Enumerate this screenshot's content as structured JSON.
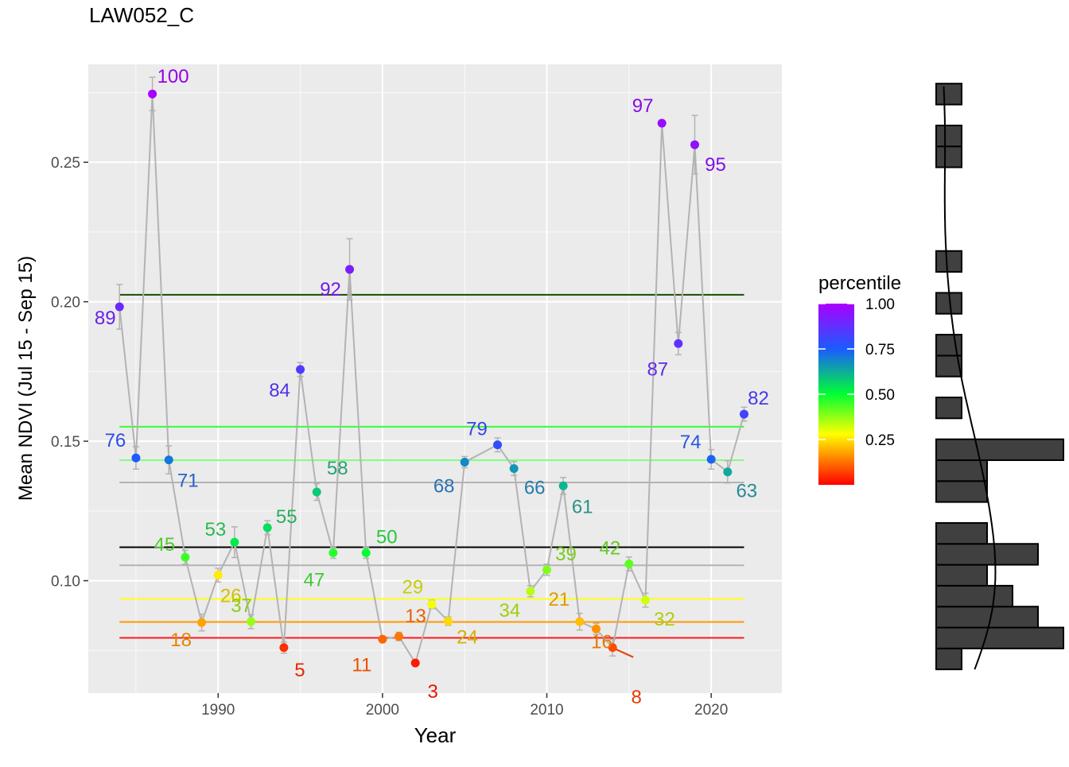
{
  "chart_data": {
    "type": "line",
    "title": "LAW052_C",
    "xlabel": "Year",
    "ylabel": "Mean NDVI (Jul 15 - Sep 15)",
    "xlim": [
      1982.1,
      2024.3
    ],
    "ylim": [
      0.0597,
      0.2851
    ],
    "x_ticks": [
      1990,
      2000,
      2010,
      2020
    ],
    "x_tick_labels": [
      "1990",
      "2000",
      "2010",
      "2020"
    ],
    "y_ticks": [
      0.1,
      0.15,
      0.2,
      0.25
    ],
    "y_tick_labels": [
      "0.10",
      "0.15",
      "0.20",
      "0.25"
    ],
    "grid": true,
    "series_color": "#b3b3b3",
    "points": [
      {
        "year": 1984,
        "ndvi": 0.1982,
        "percentile": 89,
        "err": 0.008
      },
      {
        "year": 1985,
        "ndvi": 0.144,
        "percentile": 76,
        "err": 0.004
      },
      {
        "year": 1986,
        "ndvi": 0.2745,
        "percentile": 100,
        "err": 0.006
      },
      {
        "year": 1987,
        "ndvi": 0.1433,
        "percentile": 71,
        "err": 0.005
      },
      {
        "year": 1988,
        "ndvi": 0.1084,
        "percentile": 45,
        "err": 0.0025
      },
      {
        "year": 1989,
        "ndvi": 0.085,
        "percentile": 18,
        "err": 0.003
      },
      {
        "year": 1990,
        "ndvi": 0.102,
        "percentile": 26,
        "err": 0.0025
      },
      {
        "year": 1991,
        "ndvi": 0.1138,
        "percentile": 53,
        "err": 0.0055
      },
      {
        "year": 1992,
        "ndvi": 0.0853,
        "percentile": 37,
        "err": 0.0025
      },
      {
        "year": 1993,
        "ndvi": 0.119,
        "percentile": 55,
        "err": 0.0025
      },
      {
        "year": 1994,
        "ndvi": 0.076,
        "percentile": 5,
        "err": 0.002
      },
      {
        "year": 1995,
        "ndvi": 0.1757,
        "percentile": 84,
        "err": 0.0025
      },
      {
        "year": 1996,
        "ndvi": 0.1318,
        "percentile": 58,
        "err": 0.003
      },
      {
        "year": 1997,
        "ndvi": 0.11,
        "percentile": 47,
        "err": 0.002
      },
      {
        "year": 1998,
        "ndvi": 0.2116,
        "percentile": 92,
        "err": 0.011
      },
      {
        "year": 1999,
        "ndvi": 0.11,
        "percentile": 50,
        "err": 0.002
      },
      {
        "year": 2000,
        "ndvi": 0.079,
        "percentile": 11,
        "err": 0.001
      },
      {
        "year": 2001,
        "ndvi": 0.08,
        "percentile": 13,
        "err": 0.0015
      },
      {
        "year": 2002,
        "ndvi": 0.0705,
        "percentile": 3,
        "err": 0.001
      },
      {
        "year": 2003,
        "ndvi": 0.0915,
        "percentile": 29,
        "err": 0.0015
      },
      {
        "year": 2004,
        "ndvi": 0.0855,
        "percentile": 24,
        "err": 0.0015
      },
      {
        "year": 2005,
        "ndvi": 0.1425,
        "percentile": 68,
        "err": 0.002
      },
      {
        "year": 2007,
        "ndvi": 0.1487,
        "percentile": 79,
        "err": 0.0025
      },
      {
        "year": 2008,
        "ndvi": 0.1402,
        "percentile": 66,
        "err": 0.0025
      },
      {
        "year": 2009,
        "ndvi": 0.0962,
        "percentile": 34,
        "err": 0.002
      },
      {
        "year": 2010,
        "ndvi": 0.1039,
        "percentile": 39,
        "err": 0.002
      },
      {
        "year": 2011,
        "ndvi": 0.134,
        "percentile": 61,
        "err": 0.003
      },
      {
        "year": 2012,
        "ndvi": 0.0853,
        "percentile": 21,
        "err": 0.003
      },
      {
        "year": 2013,
        "ndvi": 0.0827,
        "percentile": 16,
        "err": 0.002
      },
      {
        "year": 2014,
        "ndvi": 0.076,
        "percentile": 8,
        "err": 0.003
      },
      {
        "year": 2015,
        "ndvi": 0.106,
        "percentile": 42,
        "err": 0.0025
      },
      {
        "year": 2016,
        "ndvi": 0.093,
        "percentile": 32,
        "err": 0.0025
      },
      {
        "year": 2017,
        "ndvi": 0.264,
        "percentile": 97,
        "err": 0.001
      },
      {
        "year": 2018,
        "ndvi": 0.185,
        "percentile": 87,
        "err": 0.004
      },
      {
        "year": 2019,
        "ndvi": 0.2563,
        "percentile": 95,
        "err": 0.0105
      },
      {
        "year": 2020,
        "ndvi": 0.1435,
        "percentile": 74,
        "err": 0.0035
      },
      {
        "year": 2021,
        "ndvi": 0.139,
        "percentile": 63,
        "err": 0.004
      },
      {
        "year": 2022,
        "ndvi": 0.1597,
        "percentile": 82,
        "err": 0.0025
      }
    ],
    "reference_lines": [
      {
        "y": 0.2025,
        "color": "#1a4d00"
      },
      {
        "y": 0.1552,
        "color": "#33ff33"
      },
      {
        "y": 0.1432,
        "color": "#80ff80"
      },
      {
        "y": 0.1352,
        "color": "#b3b3b3"
      },
      {
        "y": 0.112,
        "color": "#000000"
      },
      {
        "y": 0.1055,
        "color": "#b3b3b3"
      },
      {
        "y": 0.0935,
        "color": "#ffff1a"
      },
      {
        "y": 0.0852,
        "color": "#ff9900"
      },
      {
        "y": 0.0795,
        "color": "#ff1a1a"
      }
    ],
    "legend": {
      "title": "percentile",
      "position": "right",
      "range": [
        0,
        1
      ],
      "ticks": [
        0.25,
        0.5,
        0.75,
        1.0
      ],
      "tick_labels": [
        "0.25",
        "0.50",
        "0.75",
        "1.00"
      ]
    },
    "marginal_histogram": {
      "bins": [
        {
          "lo": 0.0682,
          "hi": 0.0757,
          "count": 1
        },
        {
          "lo": 0.0757,
          "hi": 0.0832,
          "count": 5
        },
        {
          "lo": 0.0832,
          "hi": 0.0907,
          "count": 4
        },
        {
          "lo": 0.0907,
          "hi": 0.0982,
          "count": 3
        },
        {
          "lo": 0.0982,
          "hi": 0.1057,
          "count": 2
        },
        {
          "lo": 0.1057,
          "hi": 0.1132,
          "count": 4
        },
        {
          "lo": 0.1132,
          "hi": 0.1207,
          "count": 2
        },
        {
          "lo": 0.1282,
          "hi": 0.1357,
          "count": 2
        },
        {
          "lo": 0.1357,
          "hi": 0.1432,
          "count": 2
        },
        {
          "lo": 0.1432,
          "hi": 0.1507,
          "count": 5
        },
        {
          "lo": 0.1582,
          "hi": 0.1657,
          "count": 1
        },
        {
          "lo": 0.1732,
          "hi": 0.1807,
          "count": 1
        },
        {
          "lo": 0.1807,
          "hi": 0.1882,
          "count": 1
        },
        {
          "lo": 0.1957,
          "hi": 0.2032,
          "count": 1
        },
        {
          "lo": 0.2107,
          "hi": 0.2182,
          "count": 1
        },
        {
          "lo": 0.2482,
          "hi": 0.2557,
          "count": 1
        },
        {
          "lo": 0.2557,
          "hi": 0.2632,
          "count": 1
        },
        {
          "lo": 0.2707,
          "hi": 0.2782,
          "count": 1
        }
      ],
      "fill": "#404040",
      "density_curve": true
    }
  }
}
